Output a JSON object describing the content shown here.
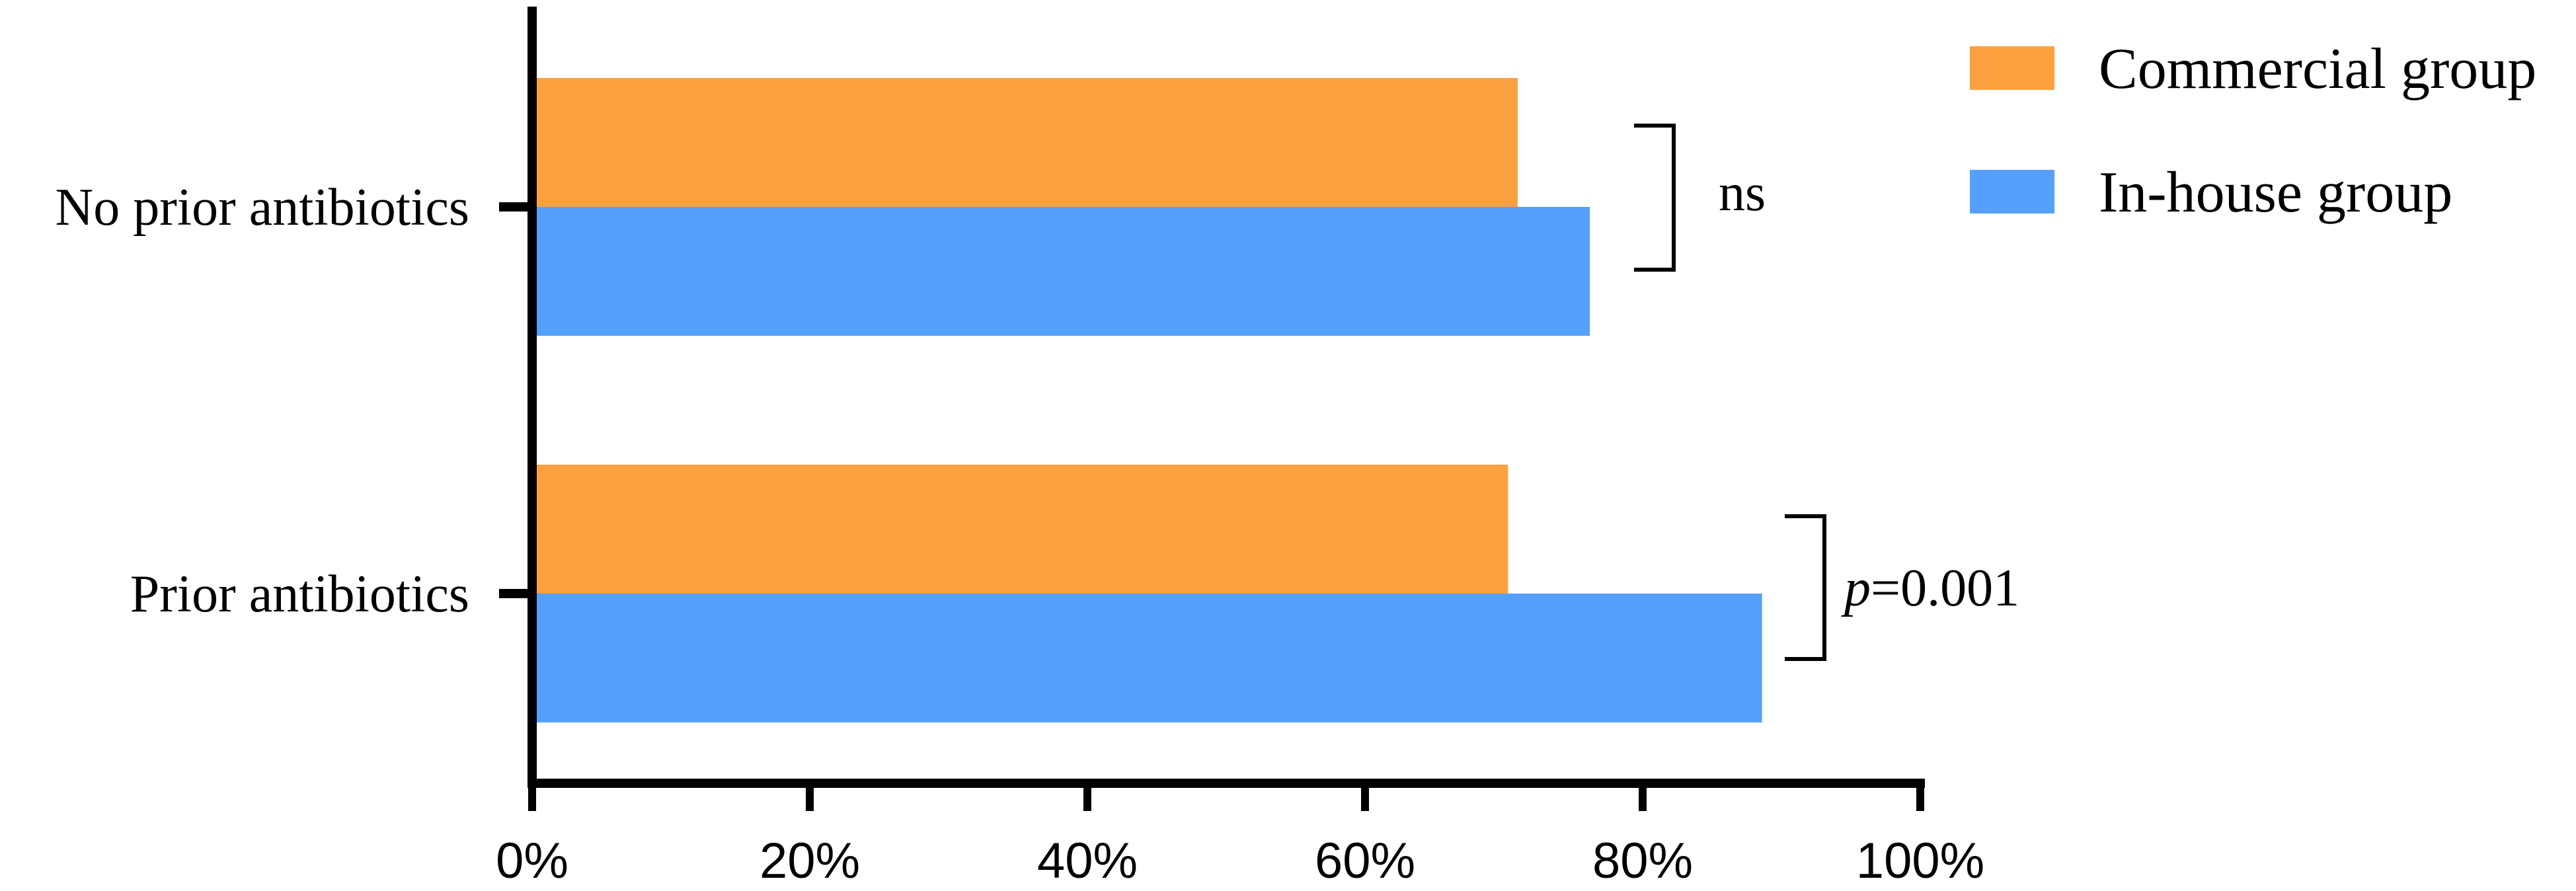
{
  "chart_data": {
    "type": "bar",
    "orientation": "horizontal",
    "categories": [
      "No prior antibiotics",
      "Prior antibiotics"
    ],
    "series": [
      {
        "name": "Commercial group",
        "values": [
          71,
          70.3
        ],
        "color": "#FBA140"
      },
      {
        "name": "In-house group",
        "values": [
          76.2,
          88.6
        ],
        "color": "#55A0FB"
      }
    ],
    "xlim": [
      0,
      100
    ],
    "x_ticks": [
      0,
      20,
      40,
      60,
      80,
      100
    ],
    "x_tick_labels": [
      "0%",
      "20%",
      "40%",
      "60%",
      "80%",
      "100%"
    ],
    "title": "",
    "xlabel": "",
    "ylabel": "",
    "grid": false,
    "legend_position": "top-right",
    "annotations": [
      {
        "category": "No prior antibiotics",
        "text": "ns",
        "italic_prefix": ""
      },
      {
        "category": "Prior antibiotics",
        "text": "=0.001",
        "italic_prefix": "p"
      }
    ]
  }
}
